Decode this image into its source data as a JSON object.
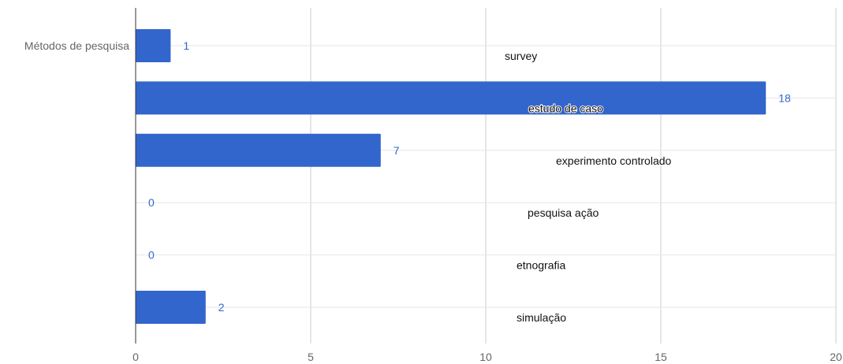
{
  "chart_data": {
    "type": "bar",
    "orientation": "horizontal",
    "series_name": "Métodos de pesquisa",
    "categories": [
      "survey",
      "estudo de caso",
      "experimento controlado",
      "pesquisa ação",
      "etnografia",
      "simulação"
    ],
    "values": [
      1,
      18,
      7,
      0,
      0,
      2
    ],
    "xlim": [
      0,
      20
    ],
    "xticks": [
      0,
      5,
      10,
      15,
      20
    ],
    "grid": true,
    "data_labels": true,
    "colors": {
      "bar": "#3366cc",
      "label": "#3366cc"
    }
  }
}
